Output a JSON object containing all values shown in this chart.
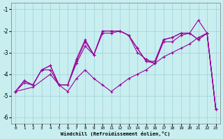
{
  "xlabel": "Windchill (Refroidissement éolien,°C)",
  "background_color": "#c8eef0",
  "grid_color": "#9ecfda",
  "line_color": "#990099",
  "xlim": [
    -0.5,
    23.5
  ],
  "ylim": [
    -6.3,
    -0.7
  ],
  "xticks": [
    0,
    1,
    2,
    3,
    4,
    5,
    6,
    7,
    8,
    9,
    10,
    11,
    12,
    13,
    14,
    15,
    16,
    17,
    18,
    19,
    20,
    21,
    22,
    23
  ],
  "yticks": [
    -6,
    -5,
    -4,
    -3,
    -2,
    -1
  ],
  "series": [
    {
      "x": [
        0,
        1,
        2,
        3,
        4,
        5,
        6,
        7,
        8,
        9,
        10,
        11,
        12,
        13,
        14,
        15,
        16,
        17,
        18,
        19,
        20,
        21,
        22,
        23
      ],
      "y": [
        -4.8,
        -4.3,
        -4.5,
        -3.8,
        -3.6,
        -4.5,
        -4.5,
        -3.3,
        -2.4,
        -3.1,
        -2.0,
        -2.0,
        -2.0,
        -2.2,
        -3.0,
        -3.3,
        -3.5,
        -2.5,
        -2.5,
        -2.2,
        -2.1,
        -1.5,
        -2.1,
        -5.6
      ]
    },
    {
      "x": [
        0,
        1,
        2,
        3,
        4,
        5,
        6,
        7,
        8,
        9,
        10,
        11,
        12,
        13,
        14,
        15,
        16,
        17,
        18,
        19,
        20,
        21,
        22,
        23
      ],
      "y": [
        -4.8,
        -4.3,
        -4.5,
        -3.8,
        -3.6,
        -4.5,
        -4.5,
        -3.4,
        -2.5,
        -3.1,
        -2.0,
        -2.0,
        -2.0,
        -2.2,
        -2.8,
        -3.4,
        -3.4,
        -2.4,
        -2.3,
        -2.1,
        -2.1,
        -2.4,
        -2.1,
        -5.6
      ]
    },
    {
      "x": [
        0,
        1,
        2,
        3,
        4,
        5,
        6,
        7,
        8,
        9,
        10,
        11,
        12,
        13,
        14,
        15,
        16,
        17,
        18,
        19,
        20,
        21,
        22,
        23
      ],
      "y": [
        -4.8,
        -4.4,
        -4.5,
        -3.8,
        -3.8,
        -4.5,
        -4.5,
        -3.5,
        -2.7,
        -3.1,
        -2.1,
        -2.1,
        -2.0,
        -2.2,
        -2.8,
        -3.4,
        -3.5,
        -2.4,
        -2.3,
        -2.1,
        -2.1,
        -2.4,
        -2.1,
        -5.6
      ]
    },
    {
      "x": [
        0,
        2,
        4,
        5,
        6,
        7,
        8,
        9,
        10,
        11,
        12,
        13,
        14,
        15,
        16,
        17,
        18,
        19,
        20,
        21,
        22,
        23
      ],
      "y": [
        -4.8,
        -4.6,
        -4.0,
        -4.5,
        -4.8,
        -4.2,
        -3.8,
        -4.2,
        -4.5,
        -4.8,
        -4.5,
        -4.2,
        -4.0,
        -3.8,
        -3.5,
        -3.2,
        -3.0,
        -2.8,
        -2.6,
        -2.3,
        -2.1,
        -5.6
      ]
    }
  ]
}
